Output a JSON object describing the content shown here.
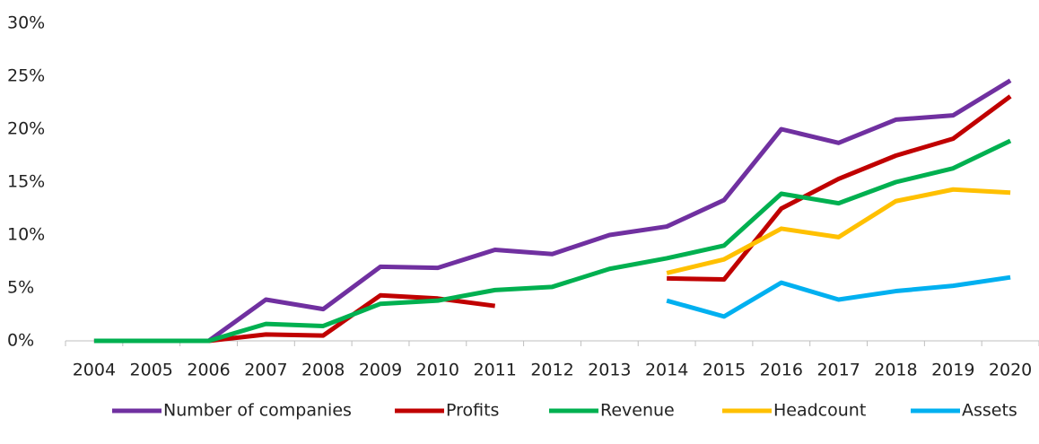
{
  "chart_data": {
    "type": "line",
    "categories": [
      "2004",
      "2005",
      "2006",
      "2007",
      "2008",
      "2009",
      "2010",
      "2011",
      "2012",
      "2013",
      "2014",
      "2015",
      "2016",
      "2017",
      "2018",
      "2019",
      "2020"
    ],
    "series": [
      {
        "name": "Number of companies",
        "color": "#7030a0",
        "values": [
          0,
          0,
          0,
          3.9,
          3.0,
          7.0,
          6.9,
          8.6,
          8.2,
          10.0,
          10.8,
          13.3,
          20.0,
          18.7,
          20.9,
          21.3,
          24.6
        ]
      },
      {
        "name": "Profits",
        "color": "#c00000",
        "values": [
          0,
          0,
          0,
          0.6,
          0.5,
          4.3,
          4.0,
          3.3,
          null,
          null,
          5.9,
          5.8,
          12.5,
          15.3,
          17.5,
          19.1,
          23.1
        ]
      },
      {
        "name": "Revenue",
        "color": "#00b050",
        "values": [
          0,
          0,
          0,
          1.6,
          1.4,
          3.5,
          3.8,
          4.8,
          5.1,
          6.8,
          7.8,
          9.0,
          13.9,
          13.0,
          15.0,
          16.3,
          18.9
        ]
      },
      {
        "name": "Headcount",
        "color": "#ffc000",
        "values": [
          null,
          null,
          null,
          null,
          null,
          null,
          null,
          null,
          null,
          null,
          6.4,
          7.7,
          10.6,
          9.8,
          13.2,
          14.3,
          14.0
        ]
      },
      {
        "name": "Assets",
        "color": "#00b0f0",
        "values": [
          null,
          null,
          null,
          null,
          null,
          null,
          null,
          null,
          null,
          null,
          3.8,
          2.3,
          5.5,
          3.9,
          4.7,
          5.2,
          6.0
        ]
      }
    ],
    "ylim": [
      0,
      30
    ],
    "yticks": [
      {
        "value": 0,
        "label": "0%"
      },
      {
        "value": 5,
        "label": "5%"
      },
      {
        "value": 10,
        "label": "10%"
      },
      {
        "value": 15,
        "label": "15%"
      },
      {
        "value": 20,
        "label": "20%"
      },
      {
        "value": 25,
        "label": "25%"
      },
      {
        "value": 30,
        "label": "30%"
      }
    ],
    "legend": "bottom"
  }
}
